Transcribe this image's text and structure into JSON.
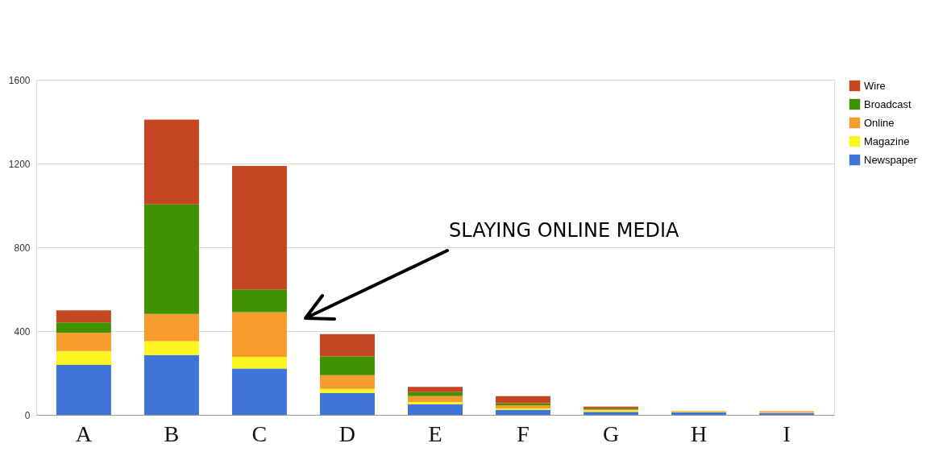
{
  "chart_data": {
    "type": "bar",
    "stacked": true,
    "categories": [
      "A",
      "B",
      "C",
      "D",
      "E",
      "F",
      "G",
      "H",
      "I"
    ],
    "series": [
      {
        "name": "Newspaper",
        "color": "#3f75d9",
        "values": [
          238,
          286,
          221,
          105,
          51,
          24,
          14,
          12,
          9
        ]
      },
      {
        "name": "Magazine",
        "color": "#fbf420",
        "values": [
          67,
          66,
          56,
          19,
          11,
          7,
          8,
          2,
          2
        ]
      },
      {
        "name": "Online",
        "color": "#f79b2c",
        "values": [
          87,
          130,
          213,
          65,
          27,
          15,
          5,
          4,
          6
        ]
      },
      {
        "name": "Broadcast",
        "color": "#3f9300",
        "values": [
          49,
          523,
          109,
          90,
          20,
          10,
          5,
          0,
          0
        ]
      },
      {
        "name": "Wire",
        "color": "#c44722",
        "values": [
          58,
          405,
          589,
          107,
          25,
          33,
          7,
          0,
          0
        ]
      }
    ],
    "ylim": [
      0,
      1600
    ],
    "yticks": [
      0,
      400,
      800,
      1200,
      1600
    ],
    "grid": "y",
    "legend": "top right",
    "annotations": [
      "SLAYING ONLINE MEDIA"
    ]
  }
}
